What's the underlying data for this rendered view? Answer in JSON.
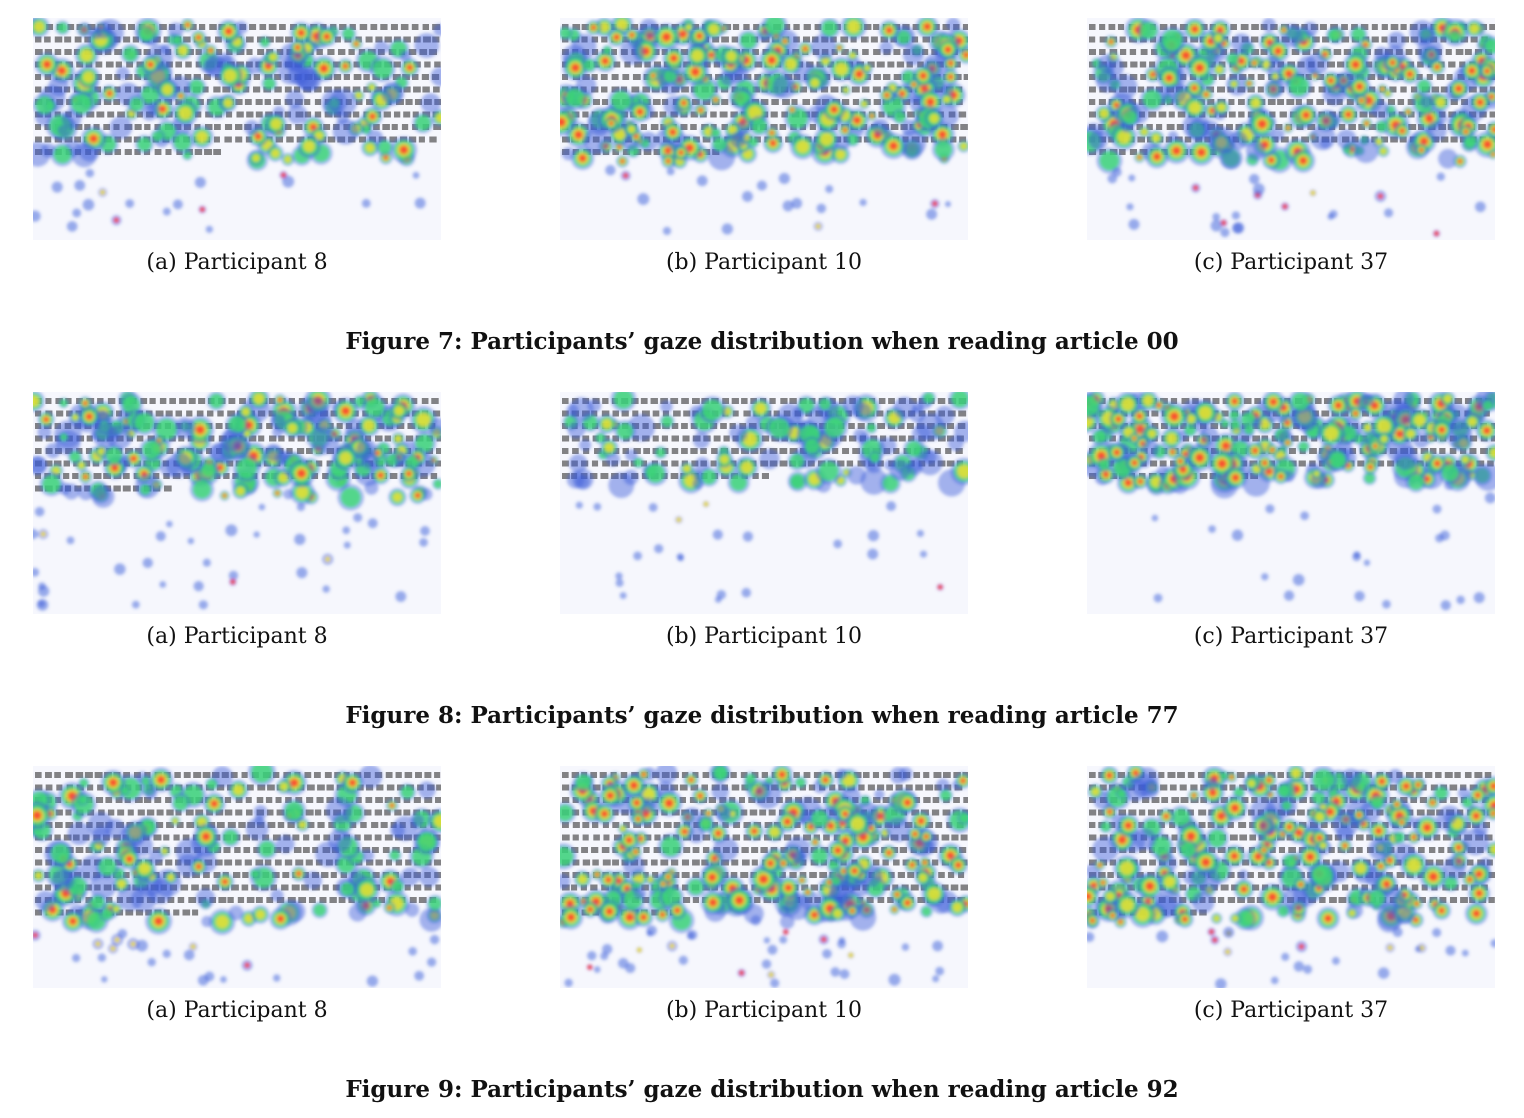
{
  "figures": [
    {
      "caption": "Figure 7: Participants’ gaze distribution when reading article 00",
      "panels": [
        {
          "label": "(a) Participant 8",
          "density": 0.55,
          "text_lines": 11
        },
        {
          "label": "(b) Participant 10",
          "density": 0.9,
          "text_lines": 11
        },
        {
          "label": "(c) Participant 37",
          "density": 0.85,
          "text_lines": 11
        }
      ]
    },
    {
      "caption": "Figure 8: Participants’ gaze distribution when reading article 77",
      "panels": [
        {
          "label": "(a) Participant 8",
          "density": 0.6,
          "text_lines": 8
        },
        {
          "label": "(b) Participant 10",
          "density": 0.25,
          "text_lines": 7
        },
        {
          "label": "(c) Participant 37",
          "density": 0.85,
          "text_lines": 7
        }
      ]
    },
    {
      "caption": "Figure 9: Participants’ gaze distribution when reading article 92",
      "panels": [
        {
          "label": "(a) Participant 8",
          "density": 0.5,
          "text_lines": 12
        },
        {
          "label": "(b) Participant 10",
          "density": 0.9,
          "text_lines": 12
        },
        {
          "label": "(c) Participant 37",
          "density": 0.95,
          "text_lines": 12
        }
      ]
    }
  ],
  "colors": {
    "hot": "#ff3b30",
    "warm": "#f5e02a",
    "mid": "#3be36b",
    "cool": "#3a5bd9",
    "text": "#222222",
    "background": "#f6f7fd"
  }
}
